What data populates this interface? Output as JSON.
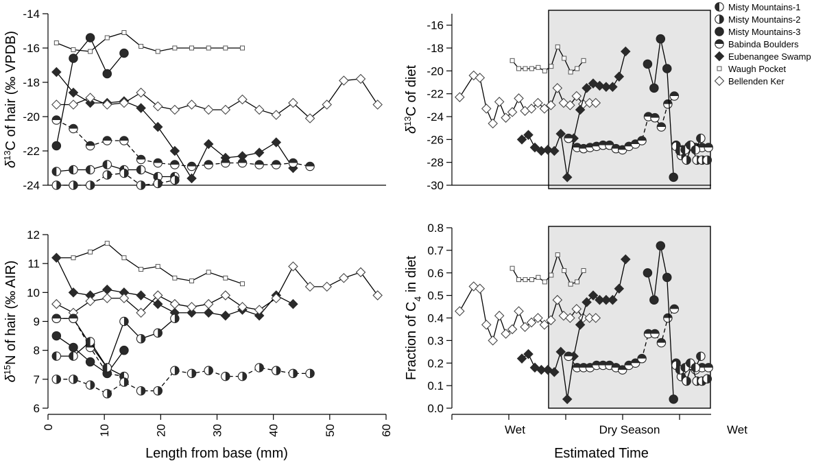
{
  "marker_legend": {
    "misty1": "left half filled circle",
    "misty2": "right half filled circle",
    "misty3": "filled circle",
    "babinda": "top half filled circle",
    "eubenangee": "filled diamond",
    "waugh": "small open square",
    "bellenden": "open diamond"
  },
  "colors": {
    "line": "#000000",
    "shade": "#e6e6e6",
    "fill": "#2a2a2a"
  },
  "legend": {
    "items": [
      {
        "key": "misty1",
        "label": "Misty Mountains-1"
      },
      {
        "key": "misty2",
        "label": "Misty Mountains-2"
      },
      {
        "key": "misty3",
        "label": "Misty Mountains-3"
      },
      {
        "key": "babinda",
        "label": "Babinda Boulders"
      },
      {
        "key": "eubenangee",
        "label": "Eubenangee Swamp"
      },
      {
        "key": "waugh",
        "label": "Waugh Pocket"
      },
      {
        "key": "bellenden",
        "label": "Bellenden Ker"
      }
    ]
  },
  "shared_x_label": "Length from base (mm)",
  "time_x_label": "Estimated Time",
  "time_categories": [
    "Wet",
    "Dry Season",
    "Wet"
  ],
  "dry_season_shaded": true,
  "chart_data": [
    {
      "type": "line",
      "id": "hair_d13c",
      "ylabel_delta": "δ",
      "ylabel_sup": "13",
      "ylabel_rest": "C of hair (‰ VPDB)",
      "xlabel": "",
      "xlim": [
        0,
        60
      ],
      "ylim": [
        -24,
        -14
      ],
      "yticks": [
        -24,
        -22,
        -20,
        -18,
        -16,
        -14
      ],
      "series": [
        {
          "key": "waugh",
          "dashed": false,
          "x": [
            1.5,
            4.5,
            7.5,
            10.5,
            13.5,
            16.5,
            19.5,
            22.5,
            25.5,
            28.5,
            31.5,
            34.5
          ],
          "y": [
            -15.7,
            -16.1,
            -16.2,
            -15.4,
            -15.1,
            -15.9,
            -16.2,
            -16.0,
            -16.0,
            -16.0,
            -16.0,
            -16.0
          ]
        },
        {
          "key": "misty3",
          "dashed": false,
          "x": [
            1.5,
            4.5,
            7.5,
            10.5,
            13.5
          ],
          "y": [
            -21.7,
            -16.6,
            -15.4,
            -17.5,
            -16.3
          ]
        },
        {
          "key": "eubenangee",
          "dashed": false,
          "x": [
            1.5,
            4.5,
            7.5,
            10.5,
            13.5,
            16.5,
            19.5,
            22.5,
            25.5,
            28.5,
            31.5,
            34.5,
            37.5,
            40.5,
            43.5
          ],
          "y": [
            -17.4,
            -18.6,
            -19.2,
            -19.2,
            -19.1,
            -19.5,
            -20.6,
            -22.0,
            -23.6,
            -21.6,
            -22.4,
            -22.3,
            -22.1,
            -21.5,
            -23.0
          ]
        },
        {
          "key": "bellenden",
          "dashed": false,
          "x": [
            1.5,
            4.5,
            7.5,
            10.5,
            13.5,
            16.5,
            19.5,
            22.5,
            25.5,
            28.5,
            31.5,
            34.5,
            37.5,
            40.5,
            43.5,
            46.5,
            49.5,
            52.5,
            55.5,
            58.5
          ],
          "y": [
            -19.3,
            -19.3,
            -18.9,
            -19.3,
            -19.2,
            -18.6,
            -19.4,
            -19.6,
            -19.3,
            -19.6,
            -19.6,
            -19.0,
            -19.6,
            -19.9,
            -19.2,
            -20.1,
            -19.3,
            -17.9,
            -17.8,
            -19.3
          ]
        },
        {
          "key": "babinda",
          "dashed": true,
          "x": [
            1.5,
            4.5,
            7.5,
            10.5,
            13.5,
            16.5,
            19.5,
            22.5,
            25.5,
            28.5,
            31.5,
            34.5,
            37.5,
            40.5,
            43.5,
            46.5
          ],
          "y": [
            -20.2,
            -20.7,
            -21.7,
            -21.4,
            -21.4,
            -22.5,
            -22.7,
            -22.8,
            -22.9,
            -22.8,
            -22.7,
            -22.7,
            -22.8,
            -22.8,
            -22.7,
            -22.9
          ]
        },
        {
          "key": "misty1",
          "dashed": false,
          "x": [
            1.5,
            4.5,
            7.5,
            10.5,
            13.5,
            16.5,
            19.5,
            22.5
          ],
          "y": [
            -23.2,
            -23.1,
            -23.1,
            -22.8,
            -23.1,
            -23.1,
            -23.5,
            -23.5
          ]
        },
        {
          "key": "misty2",
          "dashed": true,
          "x": [
            1.5,
            4.5,
            7.5,
            10.5,
            13.5,
            16.5,
            19.5,
            22.5
          ],
          "y": [
            -24.0,
            -24.0,
            -24.0,
            -23.4,
            -23.3,
            -24.0,
            -23.9,
            -23.7
          ]
        }
      ]
    },
    {
      "type": "line",
      "id": "hair_d15n",
      "ylabel_delta": "δ",
      "ylabel_sup": "15",
      "ylabel_rest": "N of hair (‰ AIR)",
      "xlabel": "Length from base (mm)",
      "xlim": [
        0,
        60
      ],
      "ylim": [
        6,
        12
      ],
      "yticks": [
        6,
        7,
        8,
        9,
        10,
        11,
        12
      ],
      "xticks": [
        0,
        10,
        20,
        30,
        40,
        50,
        60
      ],
      "series": [
        {
          "key": "waugh",
          "dashed": false,
          "x": [
            1.5,
            4.5,
            7.5,
            10.5,
            13.5,
            16.5,
            19.5,
            22.5,
            25.5,
            28.5,
            31.5,
            34.5
          ],
          "y": [
            11.2,
            11.2,
            11.4,
            11.7,
            11.2,
            10.8,
            10.9,
            10.5,
            10.4,
            10.7,
            10.5,
            10.3
          ]
        },
        {
          "key": "eubenangee",
          "dashed": false,
          "x": [
            1.5,
            4.5,
            7.5,
            10.5,
            13.5,
            16.5,
            19.5,
            22.5,
            25.5,
            28.5,
            31.5,
            34.5,
            37.5,
            40.5,
            43.5
          ],
          "y": [
            11.2,
            10.0,
            9.9,
            10.1,
            10.0,
            9.9,
            9.6,
            9.3,
            9.3,
            9.3,
            9.2,
            9.4,
            9.2,
            9.9,
            9.6
          ]
        },
        {
          "key": "bellenden",
          "dashed": false,
          "x": [
            1.5,
            4.5,
            7.5,
            10.5,
            13.5,
            16.5,
            19.5,
            22.5,
            25.5,
            28.5,
            31.5,
            34.5,
            37.5,
            40.5,
            43.5,
            46.5,
            49.5,
            52.5,
            55.5,
            58.5
          ],
          "y": [
            9.6,
            9.3,
            9.7,
            9.8,
            9.8,
            9.3,
            9.9,
            9.6,
            9.5,
            9.6,
            9.9,
            9.5,
            9.4,
            9.8,
            10.9,
            10.2,
            10.2,
            10.5,
            10.7,
            9.9
          ]
        },
        {
          "key": "misty2",
          "dashed": false,
          "x": [
            1.5,
            4.5,
            7.5,
            10.5,
            13.5,
            16.5,
            19.5,
            22.5
          ],
          "y": [
            9.1,
            9.1,
            8.2,
            7.4,
            9.0,
            8.4,
            8.6,
            9.1
          ]
        },
        {
          "key": "babinda",
          "dashed": true,
          "x": [
            1.5,
            4.5,
            7.5,
            10.5,
            13.5
          ],
          "y": [
            9.1,
            9.1,
            8.1,
            7.2,
            7.1
          ]
        },
        {
          "key": "misty3",
          "dashed": false,
          "x": [
            1.5,
            4.5,
            7.5,
            10.5,
            13.5
          ],
          "y": [
            8.5,
            8.1,
            7.6,
            7.2,
            8.0
          ]
        },
        {
          "key": "misty1",
          "dashed": false,
          "x": [
            1.5,
            4.5,
            7.5,
            10.5,
            13.5
          ],
          "y": [
            7.8,
            7.8,
            8.3,
            7.4,
            7.1
          ]
        },
        {
          "key": "misty2",
          "dashed": true,
          "x": [
            1.5,
            4.5,
            7.5,
            10.5,
            13.5,
            16.5,
            19.5,
            22.5,
            25.5,
            28.5,
            31.5,
            34.5,
            37.5,
            40.5,
            43.5,
            46.5
          ],
          "y": [
            7.0,
            7.0,
            6.8,
            6.5,
            6.9,
            6.6,
            6.6,
            7.3,
            7.2,
            7.3,
            7.1,
            7.1,
            7.4,
            7.3,
            7.2,
            7.2
          ]
        }
      ]
    },
    {
      "type": "line",
      "id": "diet_d13c",
      "ylabel_delta": "δ",
      "ylabel_sup": "13",
      "ylabel_rest": "C of diet",
      "xlabel": "",
      "xlim": [
        0,
        100
      ],
      "ylim": [
        -30,
        -15
      ],
      "yticks": [
        -30,
        -28,
        -26,
        -24,
        -22,
        -20,
        -18,
        -16
      ],
      "series": [
        {
          "key": "bellenden",
          "dashed": false,
          "x": [
            3,
            8.4,
            10.8,
            13.3,
            15.8,
            18.3,
            20.8,
            23.3,
            25.8,
            28.2,
            30.7,
            33.2,
            35.7,
            38.2,
            40.7,
            43.1,
            45.6,
            48.1,
            50.6,
            53.1,
            55.5
          ],
          "y": [
            -22.3,
            -20.4,
            -20.6,
            -23.3,
            -24.6,
            -22.7,
            -24.1,
            -23.6,
            -22.4,
            -23.5,
            -23.3,
            -22.8,
            -23.3,
            -23.0,
            -21.5,
            -22.8,
            -23.0,
            -22.2,
            -22.9,
            -22.8,
            -22.8
          ]
        },
        {
          "key": "waugh",
          "dashed": false,
          "x": [
            23.3,
            25.8,
            28.3,
            30.8,
            33.3,
            35.8,
            38.3,
            40.8,
            43.3,
            45.8,
            48.3,
            50.8
          ],
          "y": [
            -19.1,
            -19.8,
            -19.8,
            -19.8,
            -19.7,
            -20.0,
            -19.6,
            -17.9,
            -18.9,
            -20.1,
            -19.8,
            -19.1
          ]
        },
        {
          "key": "eubenangee",
          "dashed": false,
          "x": [
            27,
            29.5,
            32,
            34.5,
            37,
            39.5,
            42,
            44.5,
            47,
            49.5,
            52,
            54.5,
            57,
            59.5,
            62,
            64.5,
            67
          ],
          "y": [
            -26.0,
            -25.6,
            -26.7,
            -27.0,
            -26.9,
            -27.0,
            -25.5,
            -29.3,
            -25.9,
            -23.4,
            -21.5,
            -21.1,
            -21.3,
            -21.4,
            -21.4,
            -20.5,
            -18.3
          ]
        },
        {
          "key": "babinda",
          "dashed": true,
          "x": [
            45,
            48.3,
            50.8,
            53.3,
            55.8,
            58.3,
            60.8,
            63.3,
            65.8,
            68.3,
            70.8,
            73.3,
            75.8,
            78.3,
            80.8,
            83.3,
            85.8
          ],
          "y": [
            -25.9,
            -26.7,
            -26.8,
            -26.7,
            -26.6,
            -26.5,
            -26.5,
            -26.8,
            -26.9,
            -26.6,
            -26.4,
            -26.1,
            -24.0,
            -24.1,
            -24.9,
            -22.9,
            -22.2
          ]
        },
        {
          "key": "misty3",
          "dashed": false,
          "x": [
            75.5,
            78,
            80.5,
            83,
            85.5
          ],
          "y": [
            -19.4,
            -21.5,
            -17.2,
            -19.8,
            -29.3
          ]
        },
        {
          "key": "babinda",
          "dashed": false,
          "x": [
            86.5,
            89,
            91.5,
            94,
            96.5,
            99
          ],
          "y": [
            -26.5,
            -26.9,
            -26.6,
            -26.7,
            -26.7,
            -26.7
          ]
        },
        {
          "key": "misty2",
          "dashed": false,
          "x": [
            86.5,
            88.5,
            90.5,
            92.5,
            94.5,
            96.5,
            98.5
          ],
          "y": [
            -26.6,
            -27.4,
            -27.8,
            -26.6,
            -27.8,
            -27.8,
            -27.8
          ]
        },
        {
          "key": "misty1",
          "dashed": false,
          "x": [
            88,
            90,
            92,
            94,
            96
          ],
          "y": [
            -27.0,
            -26.9,
            -26.5,
            -26.9,
            -25.9
          ]
        }
      ]
    },
    {
      "type": "line",
      "id": "diet_c4",
      "ylabel_main": "Fraction of C",
      "ylabel_sub": "4",
      "ylabel_rest": " in diet",
      "xlabel": "Estimated Time",
      "xlim": [
        0,
        100
      ],
      "ylim": [
        0,
        0.8
      ],
      "yticks": [
        0.0,
        0.1,
        0.2,
        0.3,
        0.4,
        0.5,
        0.6,
        0.7,
        0.8
      ],
      "series": [
        {
          "key": "bellenden",
          "dashed": false,
          "x": [
            3,
            8.4,
            10.8,
            13.3,
            15.8,
            18.3,
            20.8,
            23.3,
            25.8,
            28.2,
            30.7,
            33.2,
            35.7,
            38.2,
            40.7,
            43.1,
            45.6,
            48.1,
            50.6,
            53.1,
            55.5
          ],
          "y": [
            0.43,
            0.54,
            0.53,
            0.37,
            0.3,
            0.41,
            0.33,
            0.35,
            0.43,
            0.36,
            0.38,
            0.4,
            0.37,
            0.39,
            0.48,
            0.41,
            0.4,
            0.44,
            0.4,
            0.4,
            0.4
          ]
        },
        {
          "key": "waugh",
          "dashed": false,
          "x": [
            23.3,
            25.8,
            28.3,
            30.8,
            33.3,
            35.8,
            38.3,
            40.8,
            43.3,
            45.8,
            48.3,
            50.8
          ],
          "y": [
            0.62,
            0.57,
            0.57,
            0.57,
            0.58,
            0.56,
            0.59,
            0.68,
            0.61,
            0.55,
            0.56,
            0.61
          ]
        },
        {
          "key": "eubenangee",
          "dashed": false,
          "x": [
            27,
            29.5,
            32,
            34.5,
            37,
            39.5,
            42,
            44.5,
            47,
            49.5,
            52,
            54.5,
            57,
            59.5,
            62,
            64.5,
            67
          ],
          "y": [
            0.22,
            0.24,
            0.18,
            0.17,
            0.17,
            0.16,
            0.25,
            0.04,
            0.23,
            0.37,
            0.47,
            0.5,
            0.48,
            0.48,
            0.48,
            0.53,
            0.66
          ]
        },
        {
          "key": "babinda",
          "dashed": true,
          "x": [
            45,
            48.3,
            50.8,
            53.3,
            55.8,
            58.3,
            60.8,
            63.3,
            65.8,
            68.3,
            70.8,
            73.3,
            75.8,
            78.3,
            80.8,
            83.3,
            85.8
          ],
          "y": [
            0.23,
            0.18,
            0.18,
            0.18,
            0.19,
            0.19,
            0.19,
            0.18,
            0.17,
            0.19,
            0.2,
            0.22,
            0.33,
            0.33,
            0.29,
            0.4,
            0.44
          ]
        },
        {
          "key": "misty3",
          "dashed": false,
          "x": [
            75.5,
            78,
            80.5,
            83,
            85.5
          ],
          "y": [
            0.6,
            0.48,
            0.72,
            0.58,
            0.04
          ]
        },
        {
          "key": "babinda",
          "dashed": false,
          "x": [
            86.5,
            89,
            91.5,
            94,
            96.5,
            99
          ],
          "y": [
            0.2,
            0.17,
            0.19,
            0.17,
            0.18,
            0.18
          ]
        },
        {
          "key": "misty2",
          "dashed": false,
          "x": [
            86.5,
            88.5,
            90.5,
            92.5,
            94.5,
            96.5,
            98.5
          ],
          "y": [
            0.19,
            0.14,
            0.12,
            0.19,
            0.12,
            0.12,
            0.13
          ]
        },
        {
          "key": "misty1",
          "dashed": false,
          "x": [
            88,
            90,
            92,
            94,
            96
          ],
          "y": [
            0.17,
            0.18,
            0.2,
            0.18,
            0.23
          ]
        }
      ]
    }
  ]
}
